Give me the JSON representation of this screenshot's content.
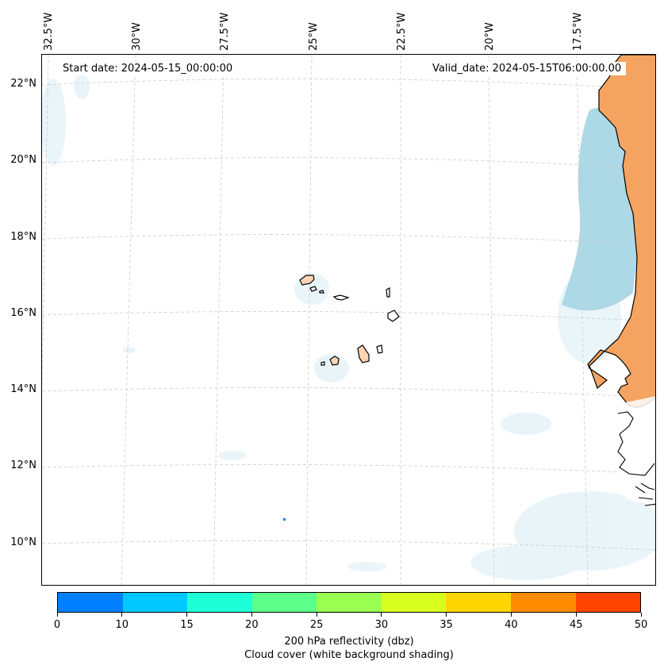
{
  "map": {
    "start_date": "Start date: 2024-05-15_00:00:00",
    "valid_date": "Valid_date: 2024-05-15T06:00:00.00",
    "lon_labels": [
      "32.5°W",
      "30°W",
      "27.5°W",
      "25°W",
      "22.5°W",
      "20°W",
      "17.5°W"
    ],
    "lat_labels": [
      "22°N",
      "20°N",
      "18°N",
      "16°N",
      "14°N",
      "12°N",
      "10°N"
    ],
    "colors": {
      "land": "#f4a460",
      "island_land": "#fdd5b4",
      "cloud_cover": "#add8e6",
      "cloud_light": "#e6f3f8",
      "gridline": "#cccccc"
    }
  },
  "colorbar": {
    "ticks": [
      "0",
      "10",
      "15",
      "20",
      "25",
      "30",
      "35",
      "40",
      "45",
      "50"
    ],
    "colors": [
      "#0080ff",
      "#00c8ff",
      "#1effd8",
      "#5cff8a",
      "#9bff52",
      "#d8ff1e",
      "#ffd700",
      "#ff8c00",
      "#ff4500"
    ],
    "label_line1": "200 hPa reflectivity (dbz)",
    "label_line2": "Cloud cover (white background shading)"
  }
}
